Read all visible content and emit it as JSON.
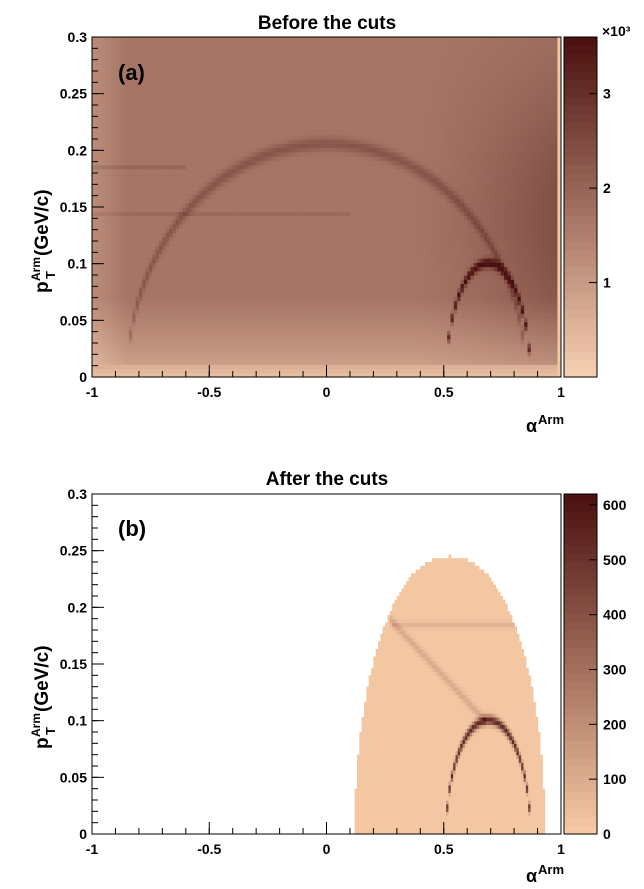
{
  "chart_data": [
    {
      "type": "heatmap",
      "title": "Before the cuts",
      "panel_label": "(a)",
      "xlabel": {
        "symbol": "α",
        "superscript": "Arm"
      },
      "ylabel": {
        "main": "p",
        "superscript": "Arm",
        "subscript": "T",
        "unit": " (GeV/c)"
      },
      "xlim": [
        -1,
        1
      ],
      "ylim": [
        0,
        0.3
      ],
      "x_ticks": [
        "-1",
        "-0.5",
        "0",
        "0.5",
        "1"
      ],
      "y_ticks": [
        "0",
        "0.05",
        "0.1",
        "0.15",
        "0.2",
        "0.25",
        "0.3"
      ],
      "colorbar": {
        "ticks": [
          "1",
          "2",
          "3"
        ],
        "tick_values": [
          1000,
          2000,
          3000
        ],
        "range": [
          0,
          3600
        ],
        "multiplier": "×10³"
      },
      "features": [
        {
          "name": "K0S band",
          "alpha_range": [
            -0.85,
            0.85
          ],
          "pt_max": 0.206
        },
        {
          "name": "Lambda band",
          "alpha_center": 0.69,
          "alpha_halfwidth": 0.18,
          "pt_max": 0.101
        }
      ],
      "colors": {
        "low": "#f7d0b2",
        "high": "#4a0f0f"
      }
    },
    {
      "type": "heatmap",
      "title": "After the cuts",
      "panel_label": "(b)",
      "xlabel": {
        "symbol": "α",
        "superscript": "Arm"
      },
      "ylabel": {
        "main": "p",
        "superscript": "Arm",
        "subscript": "T",
        "unit": " (GeV/c)"
      },
      "xlim": [
        -1,
        1
      ],
      "ylim": [
        0,
        0.3
      ],
      "x_ticks": [
        "-1",
        "-0.5",
        "0",
        "0.5",
        "1"
      ],
      "y_ticks": [
        "0",
        "0.05",
        "0.1",
        "0.15",
        "0.2",
        "0.25",
        "0.3"
      ],
      "colorbar": {
        "ticks": [
          "0",
          "100",
          "200",
          "300",
          "400",
          "500",
          "600"
        ],
        "tick_values": [
          0,
          100,
          200,
          300,
          400,
          500,
          600
        ],
        "range": [
          0,
          620
        ]
      },
      "features": [
        {
          "name": "filled region",
          "alpha_range": [
            0.12,
            0.93
          ],
          "pt_max": 0.245
        },
        {
          "name": "Lambda band",
          "alpha_center": 0.69,
          "alpha_halfwidth": 0.18,
          "pt_max": 0.101
        },
        {
          "name": "diagonal streak",
          "from": [
            0.27,
            0.19
          ],
          "to": [
            0.68,
            0.1
          ]
        },
        {
          "name": "horizontal line",
          "alpha_range": [
            0.28,
            0.86
          ],
          "pt": 0.185
        }
      ],
      "colors": {
        "low": "#f7cba6",
        "high": "#4a0f0f"
      }
    }
  ]
}
